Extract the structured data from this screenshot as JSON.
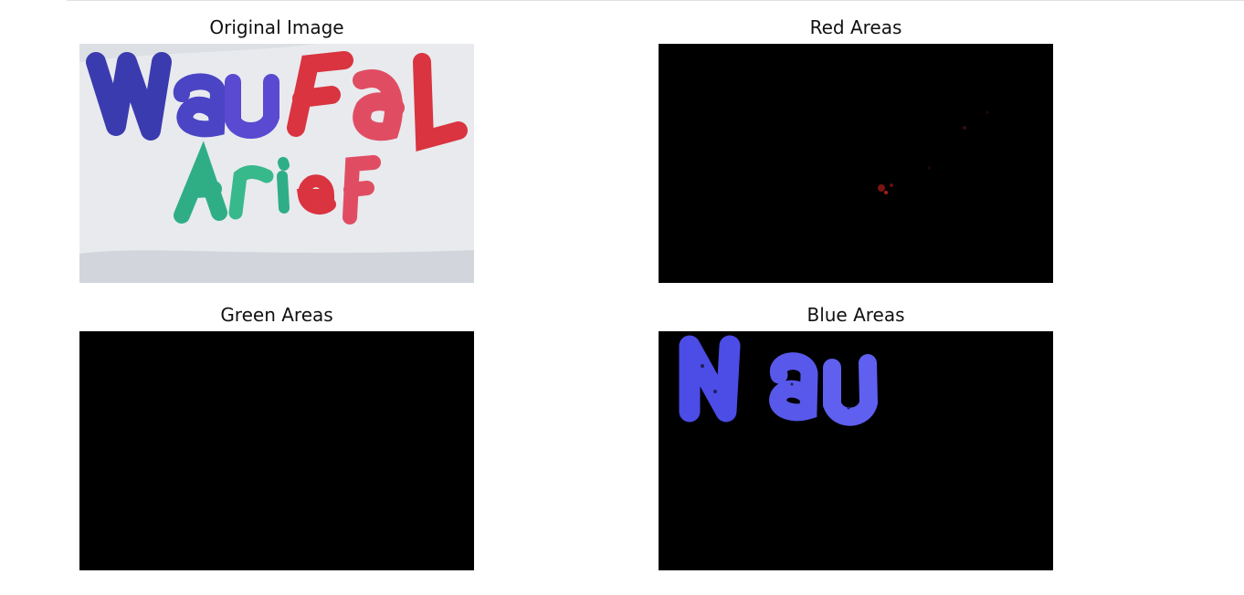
{
  "figure": {
    "panels": [
      {
        "id": "original",
        "title": "Original Image",
        "image": {
          "kind": "photo",
          "content": "handwritten marker text on white paper",
          "strokes": [
            {
              "text": "Nau",
              "color": "#3b3bb0"
            },
            {
              "text": "FaL",
              "color": "#d9343f"
            },
            {
              "text": "Ar",
              "color": "#2fae86"
            },
            {
              "text": "ie",
              "color": "#2fae86"
            },
            {
              "text": "eF",
              "color": "#d9343f"
            }
          ]
        }
      },
      {
        "id": "red",
        "title": "Red Areas",
        "image": {
          "kind": "mask",
          "background": "#000000",
          "highlight": "#7a1414",
          "content": "mostly black with faint red specks"
        }
      },
      {
        "id": "green",
        "title": "Green Areas",
        "image": {
          "kind": "mask",
          "background": "#000000",
          "content": "fully black"
        }
      },
      {
        "id": "blue",
        "title": "Blue Areas",
        "image": {
          "kind": "mask",
          "background": "#000000",
          "highlight": "#4c4ce6",
          "content": "blue handwritten text shown on black",
          "text": "Nau"
        }
      }
    ]
  }
}
